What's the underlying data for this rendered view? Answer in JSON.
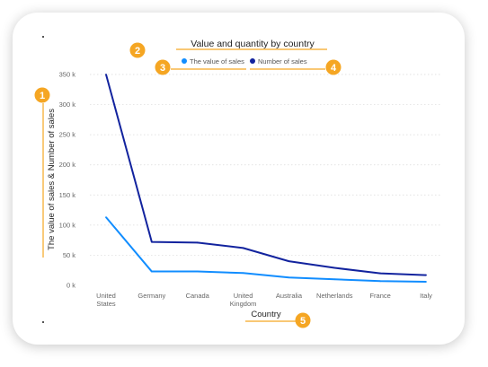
{
  "chart_data": {
    "type": "line",
    "title": "Value and quantity by country",
    "xlabel": "Country",
    "ylabel": "The value of sales & Number of sales",
    "categories": [
      "United States",
      "Germany",
      "Canada",
      "United Kingdom",
      "Australia",
      "Netherlands",
      "France",
      "Italy"
    ],
    "y_ticks": [
      "0 k",
      "50 k",
      "100 k",
      "150 k",
      "200 k",
      "250 k",
      "300 k",
      "350 k"
    ],
    "ylim": [
      0,
      350000
    ],
    "grid": true,
    "legend_position": "top",
    "series": [
      {
        "name": "The value of sales",
        "color": "#118DFF",
        "values": [
          113000,
          23000,
          23000,
          20500,
          13000,
          10000,
          7000,
          6000
        ]
      },
      {
        "name": "Number of sales",
        "color": "#12239E",
        "values": [
          350000,
          72000,
          71000,
          62000,
          40000,
          29000,
          20000,
          17000
        ]
      }
    ]
  },
  "annotations": {
    "accent_color": "#F5A623",
    "markers": [
      "1",
      "2",
      "3",
      "4",
      "5"
    ]
  }
}
